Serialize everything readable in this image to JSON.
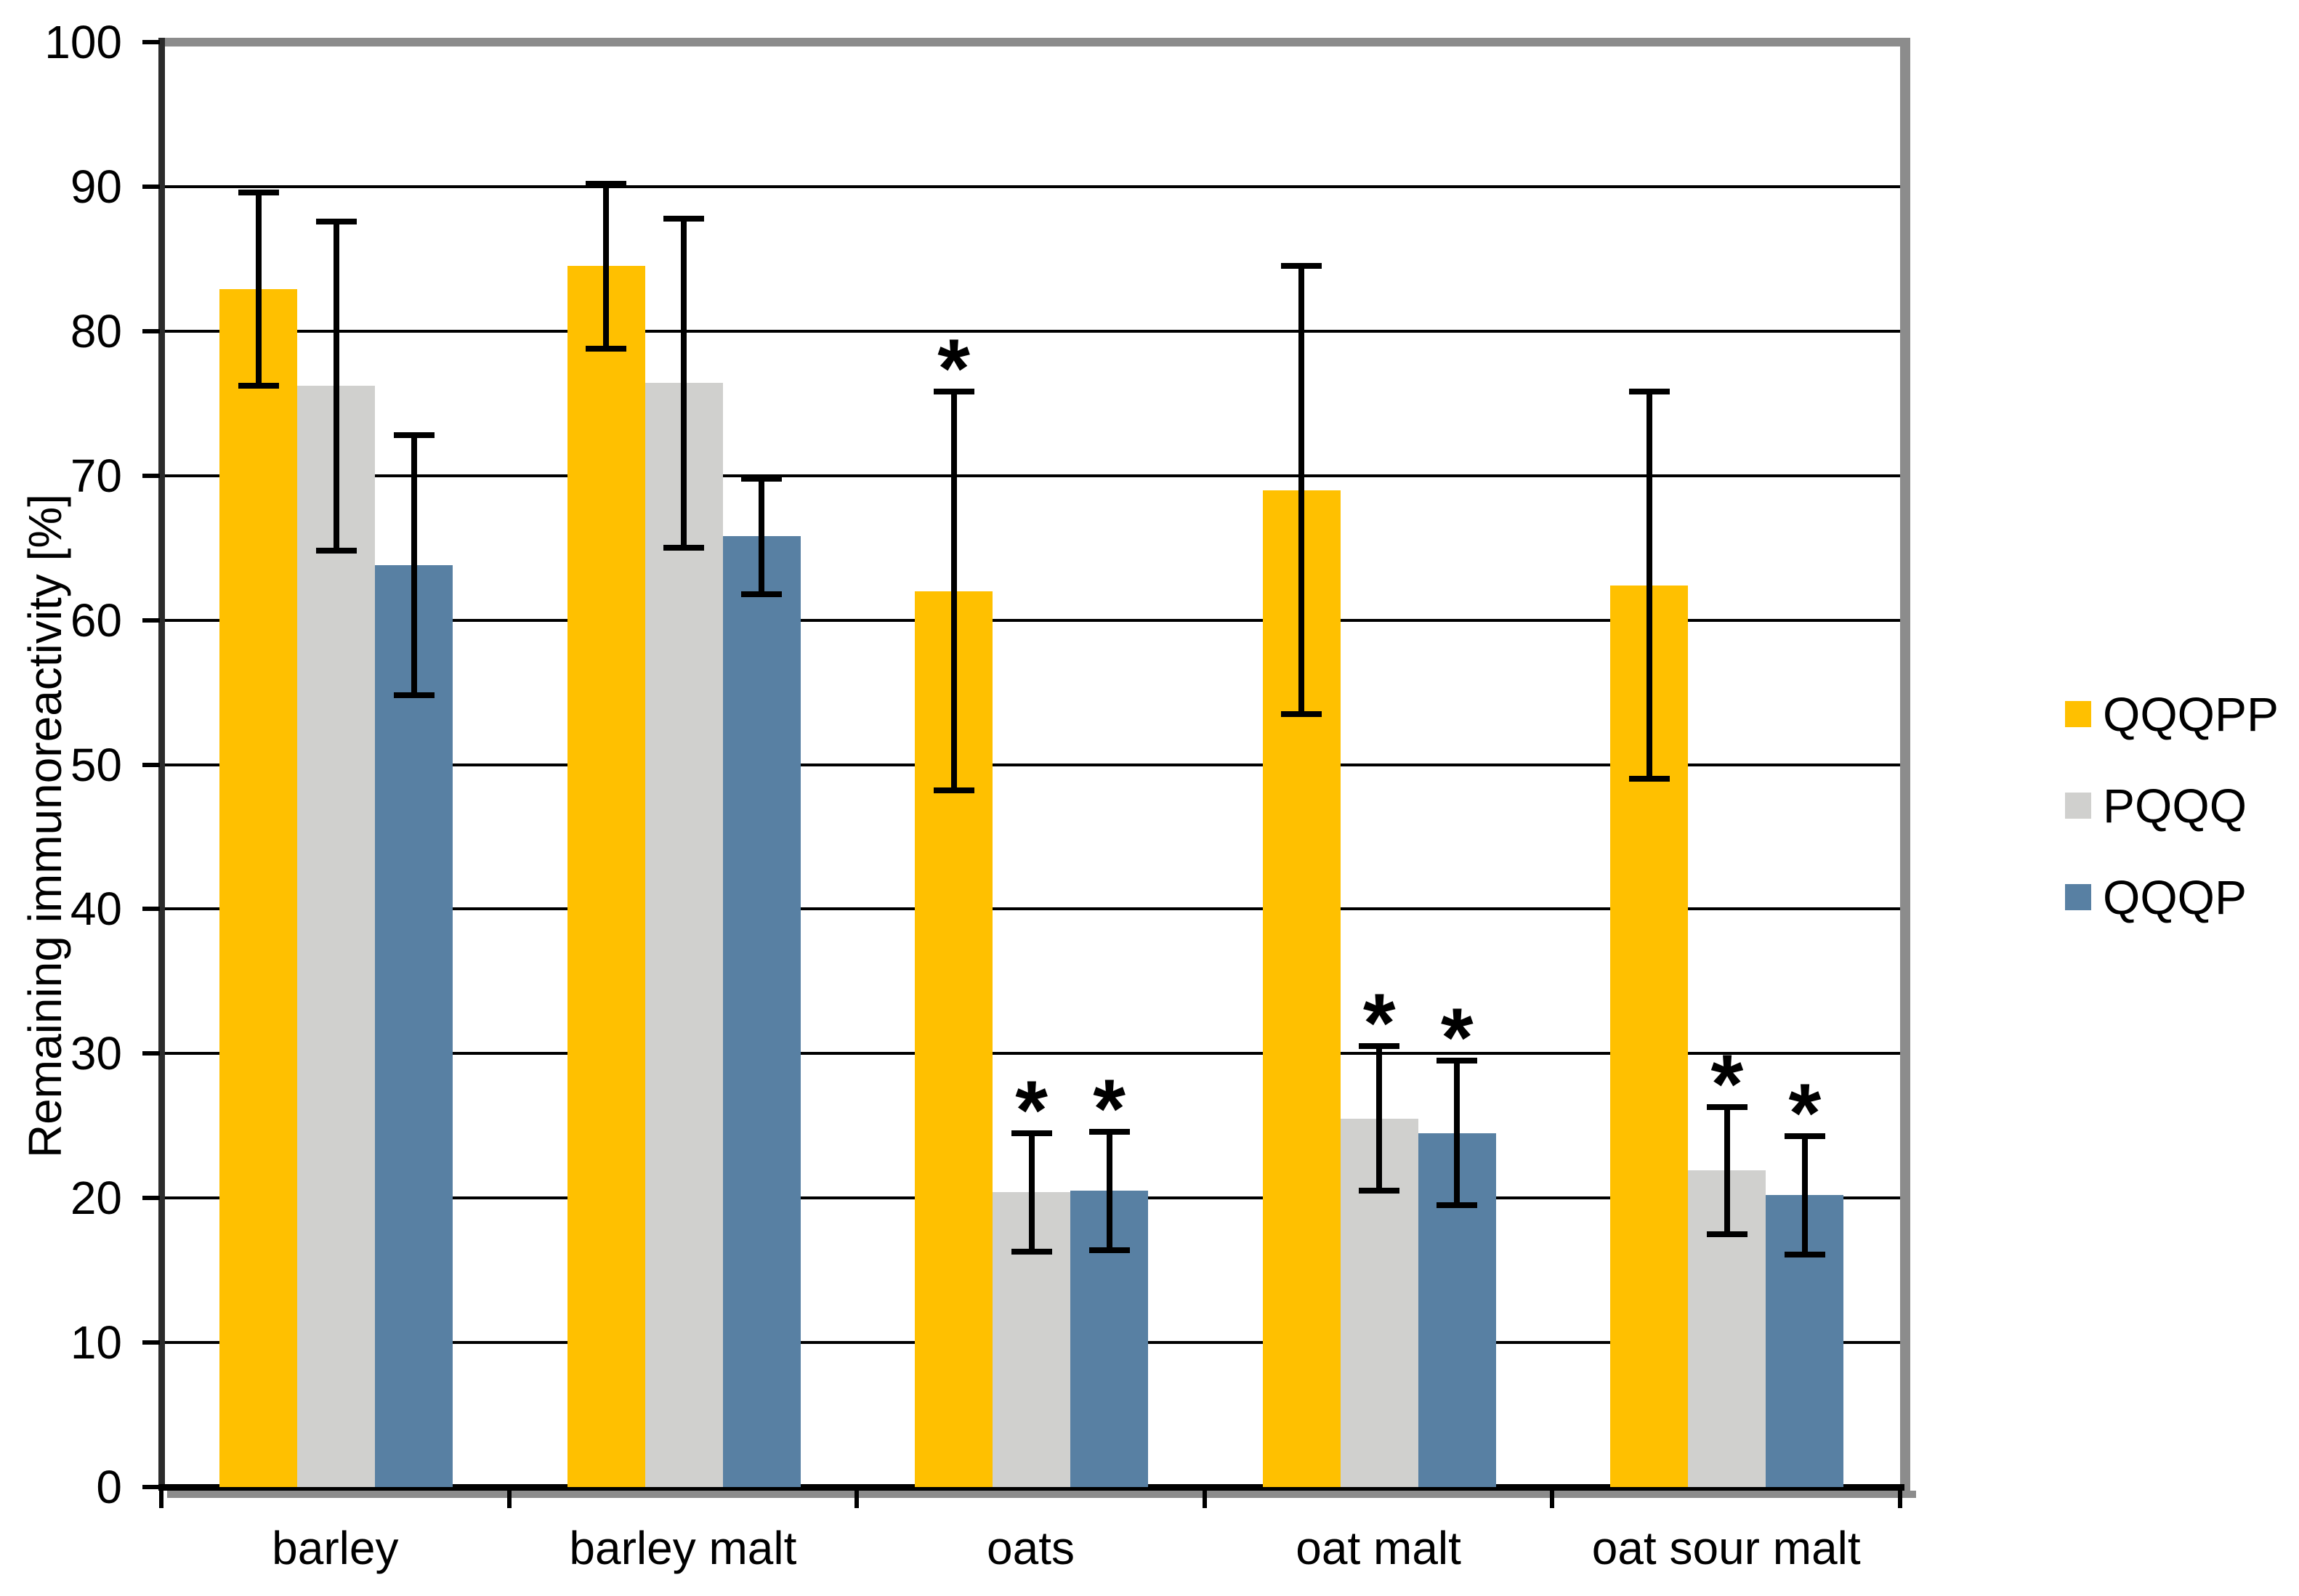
{
  "figure": {
    "title": "",
    "background": "#ffffff",
    "plot_border_color": "#8c8c8c",
    "gridline_color": "#000000"
  },
  "chart_data": {
    "type": "bar",
    "title": "",
    "xlabel": "",
    "ylabel": "Remaining immunoreactivity [%]",
    "ylim": [
      0,
      100
    ],
    "ytick_step": 10,
    "yticks": [
      0,
      10,
      20,
      30,
      40,
      50,
      60,
      70,
      80,
      90,
      100
    ],
    "grid": "horizontal",
    "legend_position": "right",
    "significance_marker": "*",
    "categories": [
      "barley",
      "barley malt",
      "oats",
      "oat malt",
      "oat sour malt"
    ],
    "series": [
      {
        "name": "QQQPP",
        "color": "#FFC000",
        "values": [
          82.9,
          84.5,
          62.0,
          69.0,
          62.4
        ],
        "errors": [
          6.7,
          5.7,
          13.8,
          15.5,
          13.4
        ],
        "significant": [
          false,
          false,
          true,
          false,
          false
        ]
      },
      {
        "name": "PQQQ",
        "color": "#D0D0CE",
        "values": [
          76.2,
          76.4,
          20.4,
          25.5,
          21.9
        ],
        "errors": [
          11.4,
          11.4,
          4.1,
          5.0,
          4.4
        ],
        "significant": [
          false,
          false,
          true,
          true,
          true
        ]
      },
      {
        "name": "QQQP",
        "color": "#5880A3",
        "values": [
          63.8,
          65.8,
          20.5,
          24.5,
          20.2
        ],
        "errors": [
          9.0,
          4.0,
          4.1,
          5.0,
          4.1
        ],
        "significant": [
          false,
          false,
          true,
          true,
          true
        ]
      }
    ]
  },
  "legend": {
    "entries": [
      "QQQPP",
      "PQQQ",
      "QQQP"
    ]
  }
}
